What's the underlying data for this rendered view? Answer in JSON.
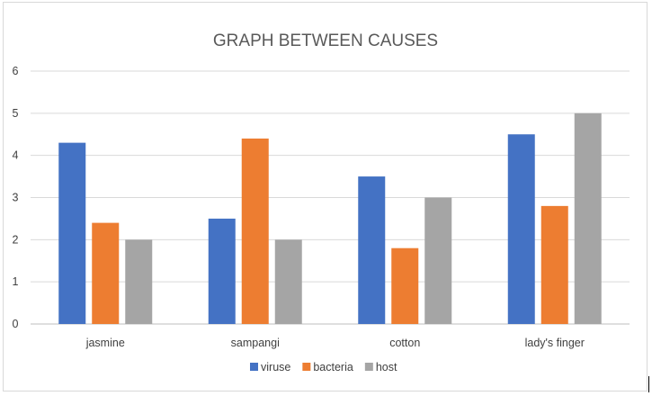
{
  "chart_data": {
    "type": "bar",
    "title": "GRAPH BETWEEN CAUSES",
    "xlabel": "",
    "ylabel": "",
    "categories": [
      "jasmine",
      "sampangi",
      "cotton",
      "lady's finger"
    ],
    "series": [
      {
        "name": "viruse",
        "color": "#4472c4",
        "values": [
          4.3,
          2.5,
          3.5,
          4.5
        ]
      },
      {
        "name": "bacteria",
        "color": "#ed7d31",
        "values": [
          2.4,
          4.4,
          1.8,
          2.8
        ]
      },
      {
        "name": "host",
        "color": "#a5a5a5",
        "values": [
          2.0,
          2.0,
          3.0,
          5.0
        ]
      }
    ],
    "ylim": [
      0,
      6
    ],
    "yticks": [
      "0",
      "1",
      "2",
      "3",
      "4",
      "5",
      "6"
    ],
    "grid": true,
    "legend": "bottom"
  }
}
